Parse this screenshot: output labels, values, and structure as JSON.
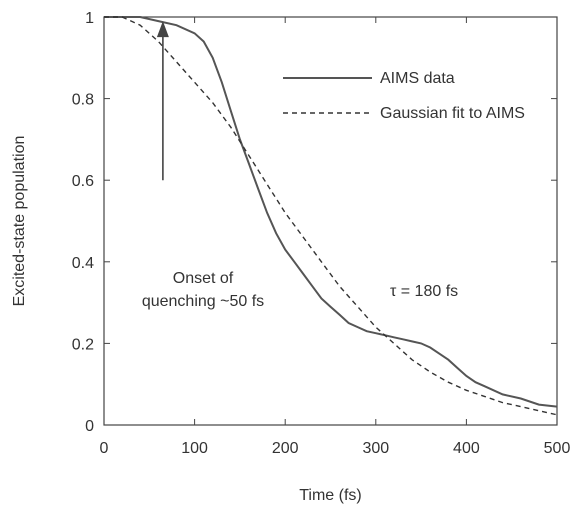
{
  "chart_data": {
    "type": "line",
    "xlabel": "Time (fs)",
    "ylabel": "Excited-state population",
    "xlim": [
      0,
      500
    ],
    "ylim": [
      0,
      1
    ],
    "x_ticks": [
      0,
      100,
      200,
      300,
      400,
      500
    ],
    "y_ticks": [
      0,
      0.2,
      0.4,
      0.6,
      0.8,
      1
    ],
    "x_tick_labels": [
      "0",
      "100",
      "200",
      "300",
      "400",
      "500"
    ],
    "y_tick_labels": [
      "0",
      "0.2",
      "0.4",
      "0.6",
      "0.8",
      "1"
    ],
    "grid": false,
    "legend_position": "top-right",
    "series": [
      {
        "name": "AIMS data",
        "style": "solid",
        "color": "#555555",
        "x": [
          0,
          20,
          40,
          60,
          80,
          100,
          110,
          120,
          130,
          140,
          150,
          160,
          170,
          180,
          190,
          200,
          210,
          220,
          230,
          240,
          250,
          260,
          270,
          280,
          290,
          300,
          310,
          320,
          330,
          340,
          350,
          360,
          370,
          380,
          390,
          400,
          410,
          420,
          440,
          460,
          480,
          500
        ],
        "y": [
          1.0,
          1.0,
          1.0,
          0.99,
          0.98,
          0.96,
          0.94,
          0.9,
          0.84,
          0.77,
          0.7,
          0.64,
          0.58,
          0.52,
          0.47,
          0.43,
          0.4,
          0.37,
          0.34,
          0.31,
          0.29,
          0.27,
          0.25,
          0.24,
          0.23,
          0.225,
          0.22,
          0.215,
          0.21,
          0.205,
          0.2,
          0.19,
          0.175,
          0.16,
          0.14,
          0.12,
          0.105,
          0.095,
          0.075,
          0.065,
          0.05,
          0.045
        ]
      },
      {
        "name": "Gaussian fit to AIMS",
        "style": "dashed",
        "color": "#333333",
        "x": [
          0,
          20,
          40,
          60,
          80,
          100,
          120,
          140,
          160,
          180,
          200,
          220,
          240,
          260,
          280,
          300,
          320,
          340,
          360,
          380,
          400,
          420,
          440,
          460,
          480,
          500
        ],
        "y": [
          1.0,
          1.0,
          0.98,
          0.94,
          0.89,
          0.84,
          0.79,
          0.73,
          0.66,
          0.59,
          0.52,
          0.46,
          0.4,
          0.34,
          0.29,
          0.24,
          0.2,
          0.16,
          0.13,
          0.105,
          0.085,
          0.07,
          0.055,
          0.045,
          0.035,
          0.025
        ]
      }
    ],
    "annotations": {
      "onset_line1": "Onset of",
      "onset_line2": "quenching ~50 fs",
      "tau": "τ = 180 fs"
    },
    "arrow": {
      "x": 65,
      "y_from": 0.6,
      "y_to": 0.99
    }
  }
}
